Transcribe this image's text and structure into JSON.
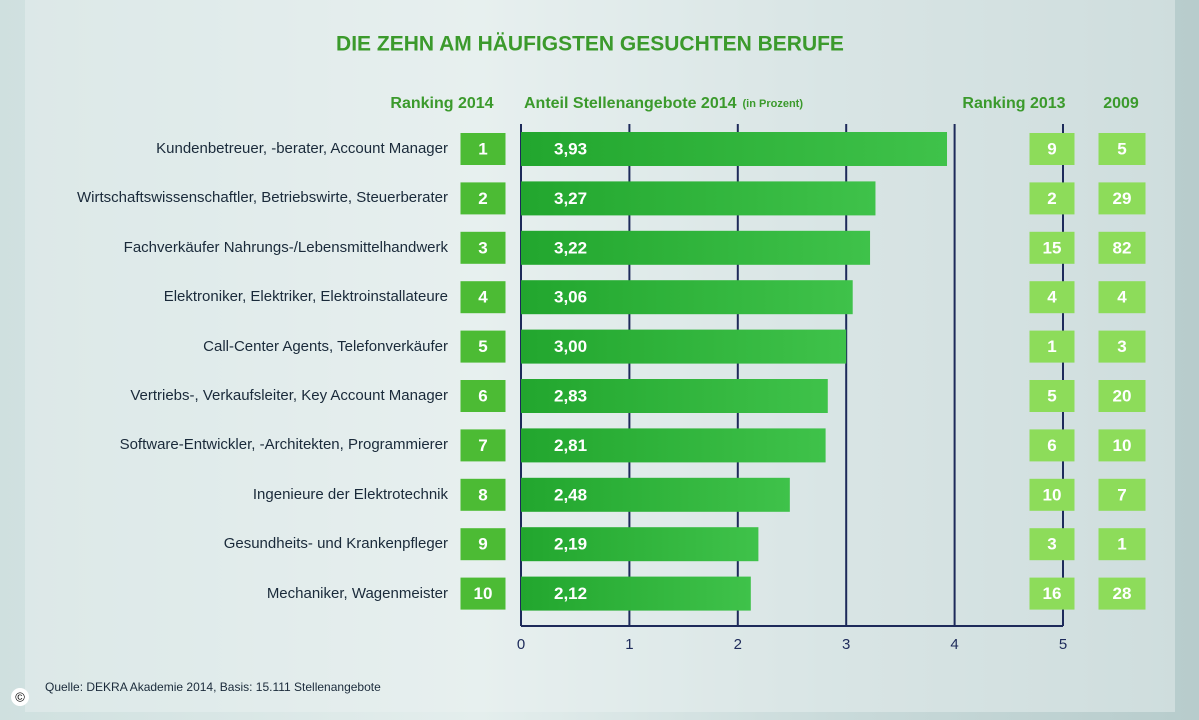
{
  "chart_data": {
    "type": "bar",
    "title": "DIE ZEHN AM HÄUFIGSTEN GESUCHTEN BERUFE",
    "rank_header": "Ranking 2014",
    "value_header": "Anteil Stellenangebote 2014",
    "value_unit": "(in Prozent)",
    "rank2013_header": "Ranking 2013",
    "rank2009_header": "2009",
    "categories": [
      "Kundenbetreuer, -berater, Account Manager",
      "Wirtschaftswissenschaftler, Betriebswirte, Steuerberater",
      "Fachverkäufer Nahrungs-/Lebensmittelhandwerk",
      "Elektroniker, Elektriker, Elektroinstallateure",
      "Call-Center Agents, Telefonverkäufer",
      "Vertriebs-, Verkaufsleiter, Key Account Manager",
      "Software-Entwickler, -Architekten, Programmierer",
      "Ingenieure der Elektrotechnik",
      "Gesundheits- und Krankenpfleger",
      "Mechaniker, Wagenmeister"
    ],
    "rank2014": [
      1,
      2,
      3,
      4,
      5,
      6,
      7,
      8,
      9,
      10
    ],
    "values": [
      3.93,
      3.27,
      3.22,
      3.06,
      3.0,
      2.83,
      2.81,
      2.48,
      2.19,
      2.12
    ],
    "value_labels": [
      "3,93",
      "3,27",
      "3,22",
      "3,06",
      "3,00",
      "2,83",
      "2,81",
      "2,48",
      "2,19",
      "2,12"
    ],
    "rank2013": [
      9,
      2,
      15,
      4,
      1,
      5,
      6,
      10,
      3,
      16
    ],
    "rank2009": [
      5,
      29,
      82,
      4,
      3,
      20,
      10,
      7,
      1,
      28
    ],
    "color": "#22a62e",
    "xlim": [
      0,
      5
    ],
    "xticks": [
      0,
      1,
      2,
      3,
      4,
      5
    ],
    "grid": true,
    "source": "Quelle: DEKRA Akademie 2014, Basis: 15.111 Stellenangebote",
    "copyright": "©"
  }
}
